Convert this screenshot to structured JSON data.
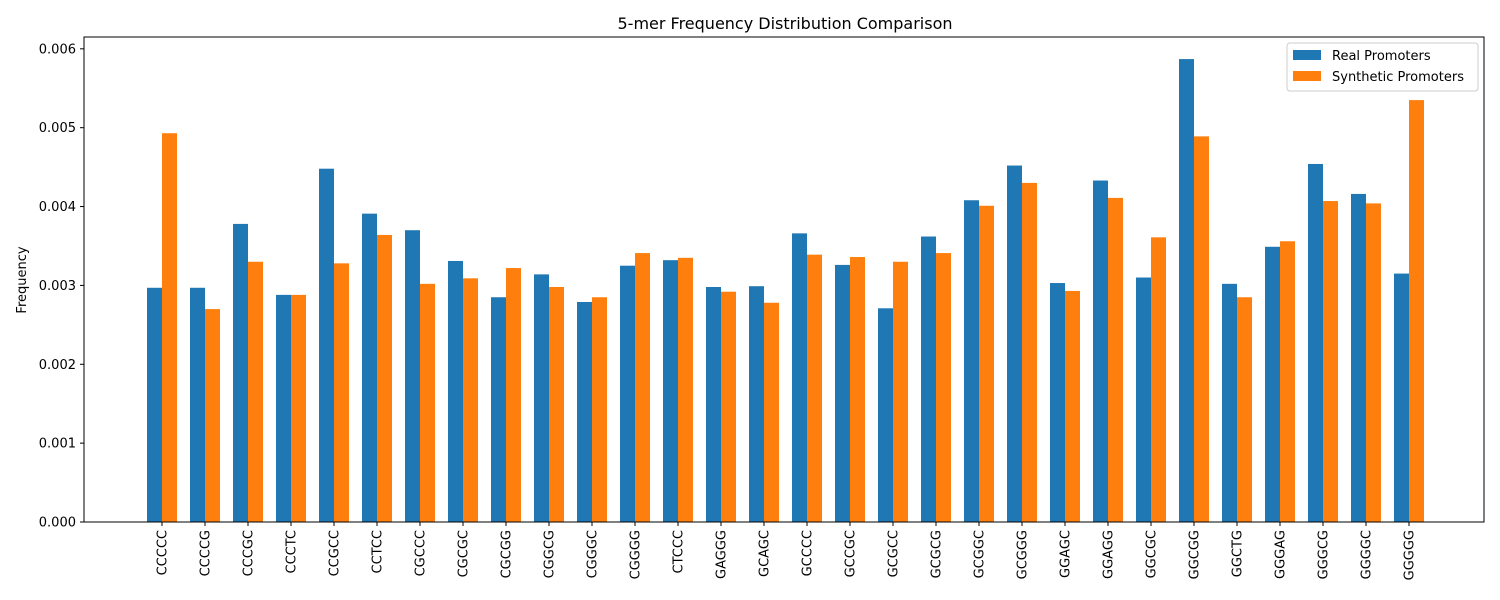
{
  "chart_data": {
    "type": "bar",
    "title": "5-mer Frequency Distribution Comparison",
    "xlabel": "",
    "ylabel": "Frequency",
    "ylim": [
      0,
      0.00615
    ],
    "yticks": [
      "0.000",
      "0.001",
      "0.002",
      "0.003",
      "0.004",
      "0.005",
      "0.006"
    ],
    "ytick_values": [
      0,
      0.001,
      0.002,
      0.003,
      0.004,
      0.005,
      0.006
    ],
    "grid": false,
    "legend_position": "top-right",
    "categories": [
      "CCCCC",
      "CCCCG",
      "CCCGC",
      "CCCTC",
      "CCGCC",
      "CCTCC",
      "CGCCC",
      "CGCGC",
      "CGCGG",
      "CGGCG",
      "CGGGC",
      "CGGGG",
      "CTCCC",
      "GAGGG",
      "GCAGC",
      "GCCCC",
      "GCCGC",
      "GCGCC",
      "GCGCG",
      "GCGGC",
      "GCGGG",
      "GGAGC",
      "GGAGG",
      "GGCGC",
      "GGCGG",
      "GGCTG",
      "GGGAG",
      "GGGCG",
      "GGGGC",
      "GGGGG"
    ],
    "series": [
      {
        "name": "Real Promoters",
        "color": "#1f77b4",
        "values": [
          0.00297,
          0.00297,
          0.00378,
          0.00288,
          0.00448,
          0.00391,
          0.0037,
          0.00331,
          0.00285,
          0.00314,
          0.00279,
          0.00325,
          0.00332,
          0.00298,
          0.00299,
          0.00366,
          0.00326,
          0.00271,
          0.00362,
          0.00408,
          0.00452,
          0.00303,
          0.00433,
          0.0031,
          0.00587,
          0.00302,
          0.00349,
          0.00454,
          0.00416,
          0.00315
        ]
      },
      {
        "name": "Synthetic Promoters",
        "color": "#ff7f0e",
        "values": [
          0.00493,
          0.0027,
          0.0033,
          0.00288,
          0.00328,
          0.00364,
          0.00302,
          0.00309,
          0.00322,
          0.00298,
          0.00285,
          0.00341,
          0.00335,
          0.00292,
          0.00278,
          0.00339,
          0.00336,
          0.0033,
          0.00341,
          0.00401,
          0.0043,
          0.00293,
          0.00411,
          0.00361,
          0.00489,
          0.00285,
          0.00356,
          0.00407,
          0.00404,
          0.00535
        ]
      }
    ]
  }
}
